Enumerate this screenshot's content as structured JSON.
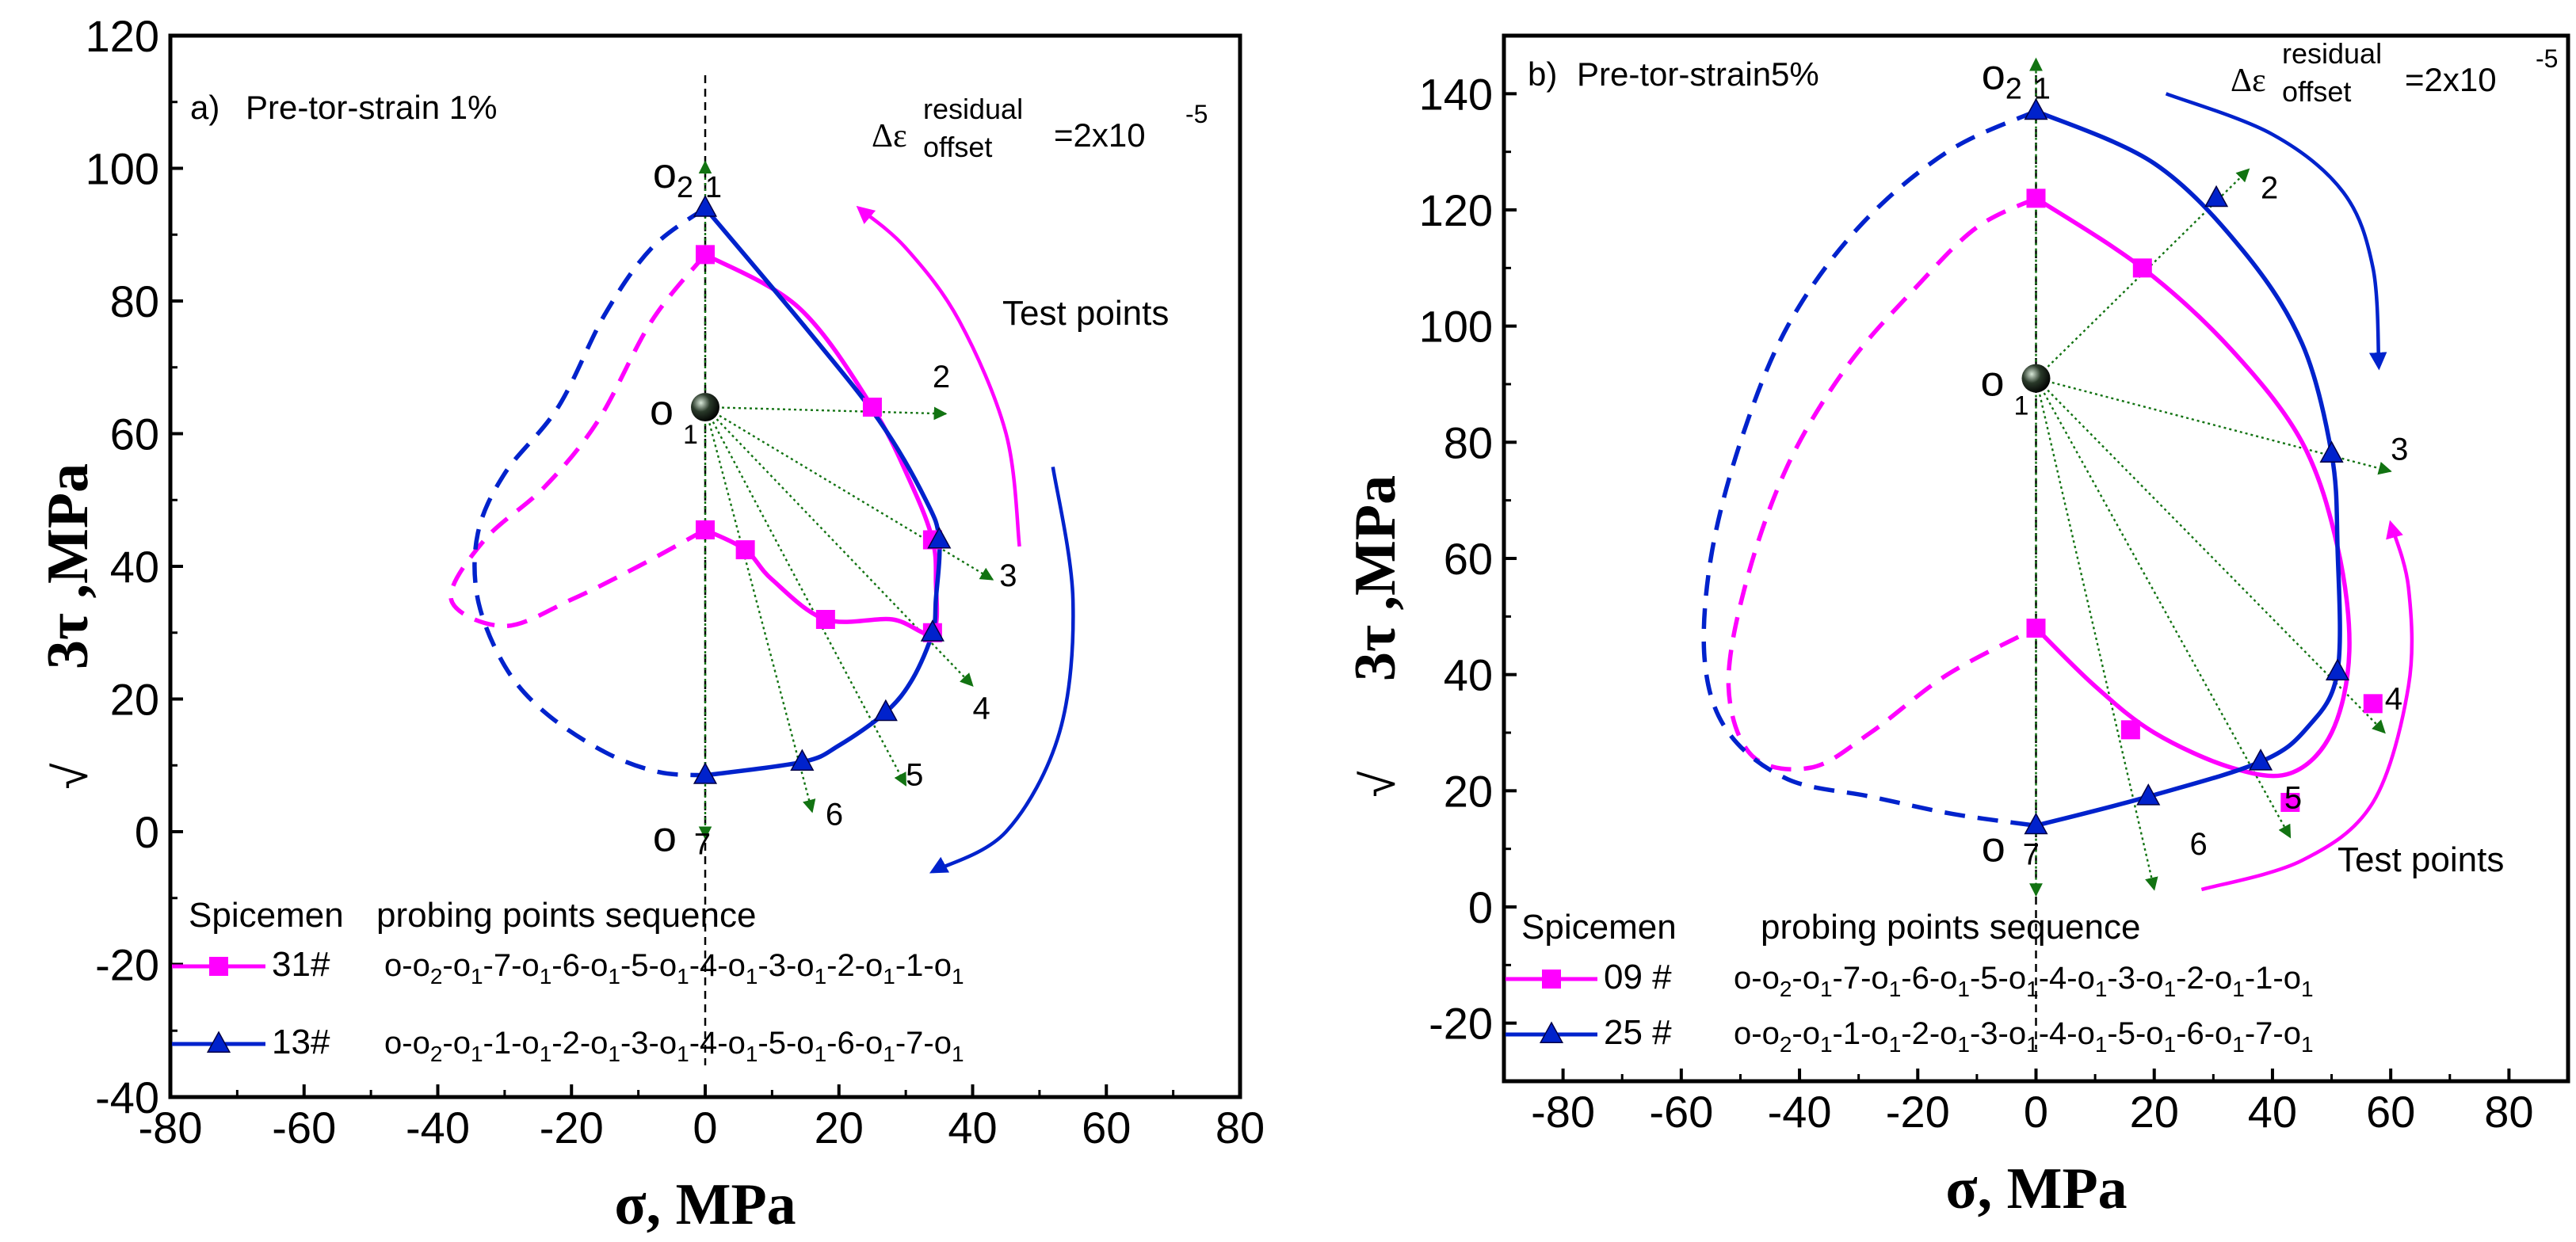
{
  "colors": {
    "pink": "#ff00ff",
    "blue": "#0022cc",
    "green": "#127312",
    "black": "#000000"
  },
  "chart_data": [
    {
      "type": "line",
      "panel_label": "a)",
      "title": "Pre-tor-strain 1%",
      "xlabel": "σ,  MPa",
      "ylabel_prefix": "√",
      "ylabel_main": "3τ ,MPa",
      "xlim": [
        -80,
        80
      ],
      "ylim": [
        -40,
        120
      ],
      "xticks": [
        "-80",
        "-60",
        "-40",
        "-20",
        "0",
        "20",
        "40",
        "60",
        "80"
      ],
      "yticks": [
        "-40",
        "-20",
        "0",
        "20",
        "40",
        "60",
        "80",
        "100",
        "120"
      ],
      "xtick_values": [
        -80,
        -60,
        -40,
        -20,
        0,
        20,
        40,
        60,
        80
      ],
      "ytick_values": [
        -40,
        -20,
        0,
        20,
        40,
        60,
        80,
        100,
        120
      ],
      "offset_label": {
        "delta": "Δε",
        "sup": "residual",
        "sub": "offset",
        "value": "=2x10",
        "exp": "-5"
      },
      "test_points_label": "Test points",
      "center_label": "o",
      "center_sub": "1",
      "center": [
        0,
        64
      ],
      "point_labels": [
        {
          "text": "o",
          "sub": "2",
          "num": "1",
          "x": -5,
          "y": 99
        },
        {
          "text": "2",
          "x": 34,
          "y": 67
        },
        {
          "text": "3",
          "x": 44,
          "y": 37
        },
        {
          "text": "4",
          "x": 40,
          "y": 17
        },
        {
          "text": "5",
          "x": 30,
          "y": 7
        },
        {
          "text": "6",
          "x": 18,
          "y": 1
        },
        {
          "text": "o",
          "num": "7",
          "x": -5,
          "y": -1
        }
      ],
      "probe_arrows": [
        [
          0,
          101
        ],
        [
          36,
          63
        ],
        [
          43,
          38
        ],
        [
          40,
          22
        ],
        [
          30,
          7
        ],
        [
          16,
          3
        ],
        [
          0,
          -1
        ]
      ],
      "series": [
        {
          "name": "31#",
          "sequence": [
            "o-o",
            "2",
            "-o",
            "1",
            "-7-o",
            "1",
            "-6-o",
            "1",
            "-5-o",
            "1",
            "-4-o",
            "1",
            "-3-o",
            "1",
            "-2-o",
            "1",
            "-1-o",
            "1"
          ],
          "color": "#ff00ff",
          "marker": "square",
          "points": [
            [
              0,
              87
            ],
            [
              25,
              64
            ],
            [
              34,
              44
            ],
            [
              34,
              30
            ],
            [
              18,
              32
            ],
            [
              6,
              42.5
            ],
            [
              0,
              45.5
            ]
          ],
          "curve_solid": [
            [
              0,
              87
            ],
            [
              14,
              79
            ],
            [
              25,
              64
            ],
            [
              31,
              52
            ],
            [
              34,
              44
            ],
            [
              34.5,
              38
            ],
            [
              34,
              30
            ],
            [
              28,
              32
            ],
            [
              18,
              32
            ],
            [
              10,
              38
            ],
            [
              6,
              42.5
            ],
            [
              0,
              45.5
            ]
          ],
          "curve_dashed": [
            [
              0,
              87
            ],
            [
              -8,
              77
            ],
            [
              -16,
              62
            ],
            [
              -24,
              52
            ],
            [
              -33,
              44
            ],
            [
              -38,
              35
            ],
            [
              -30,
              31
            ],
            [
              -20,
              35
            ],
            [
              -10,
              40
            ],
            [
              0,
              45.5
            ]
          ]
        },
        {
          "name": "13#",
          "sequence": [
            "o-o",
            "2",
            "-o",
            "1",
            "-1-o",
            "1",
            "-2-o",
            "1",
            "-3-o",
            "1",
            "-4-o",
            "1",
            "-5-o",
            "1",
            "-6-o",
            "1",
            "-7-o",
            "1"
          ],
          "color": "#0022cc",
          "marker": "triangle",
          "points": [
            [
              0,
              94
            ],
            [
              35,
              44
            ],
            [
              34,
              30
            ],
            [
              27,
              18
            ],
            [
              14.5,
              10.5
            ],
            [
              0,
              8.5
            ]
          ],
          "curve_solid": [
            [
              0,
              94
            ],
            [
              15,
              76
            ],
            [
              26,
              62
            ],
            [
              33,
              50
            ],
            [
              35,
              44
            ],
            [
              34.5,
              35
            ],
            [
              34,
              30
            ],
            [
              31,
              23
            ],
            [
              27,
              18
            ],
            [
              20,
              13
            ],
            [
              14.5,
              10.5
            ],
            [
              0,
              8.5
            ]
          ],
          "curve_dashed": [
            [
              0,
              94
            ],
            [
              -8,
              88
            ],
            [
              -15,
              78
            ],
            [
              -22,
              64
            ],
            [
              -30,
              54
            ],
            [
              -34,
              45
            ],
            [
              -34,
              35
            ],
            [
              -30,
              25
            ],
            [
              -24,
              18
            ],
            [
              -15,
              12
            ],
            [
              -7,
              9
            ],
            [
              0,
              8.5
            ]
          ]
        }
      ],
      "guide_arcs": [
        {
          "color": "#ff00ff",
          "arrow_at": "end",
          "points": [
            [
              47,
              43
            ],
            [
              45,
              60
            ],
            [
              38,
              77
            ],
            [
              30,
              88
            ],
            [
              23,
              94
            ]
          ]
        },
        {
          "color": "#0022cc",
          "arrow_at": "end",
          "points": [
            [
              52,
              55
            ],
            [
              55,
              35
            ],
            [
              53,
              15
            ],
            [
              45,
              0
            ],
            [
              34,
              -6
            ]
          ]
        }
      ],
      "legend": {
        "header_left": "Spicemen",
        "header_right": "probing points sequence"
      }
    },
    {
      "type": "line",
      "panel_label": "b)",
      "title": "Pre-tor-strain5%",
      "xlabel": "σ,  MPa",
      "ylabel_prefix": "√",
      "ylabel_main": "3τ ,MPa",
      "xlim": [
        -90,
        90
      ],
      "ylim": [
        -30,
        150
      ],
      "xticks": [
        "-80",
        "-60",
        "-40",
        "-20",
        "0",
        "20",
        "40",
        "60",
        "80"
      ],
      "yticks": [
        "-20",
        "0",
        "20",
        "40",
        "60",
        "80",
        "100",
        "120",
        "140"
      ],
      "xtick_values": [
        -80,
        -60,
        -40,
        -20,
        0,
        20,
        40,
        60,
        80
      ],
      "ytick_values": [
        -20,
        0,
        20,
        40,
        60,
        80,
        100,
        120,
        140
      ],
      "offset_label": {
        "delta": "Δε",
        "sup": "residual",
        "sub": "offset",
        "value": "=2x10",
        "exp": "-5"
      },
      "test_points_label": "Test points",
      "center_label": "o",
      "center_sub": "1",
      "center": [
        0,
        91
      ],
      "point_labels": [
        {
          "text": "o",
          "sub": "2",
          "num": "1",
          "x": -6,
          "y": 143
        },
        {
          "text": "2",
          "x": 38,
          "y": 122
        },
        {
          "text": "3",
          "x": 60,
          "y": 77
        },
        {
          "text": "4",
          "x": 59,
          "y": 34
        },
        {
          "text": "5",
          "x": 42,
          "y": 17
        },
        {
          "text": "6",
          "x": 26,
          "y": 9
        },
        {
          "text": "o",
          "num": "7",
          "x": -6,
          "y": 10
        }
      ],
      "probe_arrows": [
        [
          0,
          146
        ],
        [
          36,
          127
        ],
        [
          60,
          75
        ],
        [
          59,
          30
        ],
        [
          43,
          12
        ],
        [
          20,
          3
        ],
        [
          0,
          2
        ]
      ],
      "series": [
        {
          "name": "09 #",
          "sequence": [
            "o-o",
            "2",
            "-o",
            "1",
            "-7-o",
            "1",
            "-6-o",
            "1",
            "-5-o",
            "1",
            "-4-o",
            "1",
            "-3-o",
            "1",
            "-2-o",
            "1",
            "-1-o",
            "1"
          ],
          "color": "#ff00ff",
          "marker": "square",
          "points": [
            [
              0,
              122
            ],
            [
              18,
              110
            ],
            [
              57,
              35
            ],
            [
              43,
              18
            ],
            [
              16,
              30.5
            ],
            [
              0,
              48
            ]
          ],
          "curve_solid": [
            [
              0,
              122
            ],
            [
              18,
              110
            ],
            [
              33,
              96
            ],
            [
              45,
              80
            ],
            [
              51,
              62
            ],
            [
              53,
              44
            ],
            [
              50,
              30
            ],
            [
              43,
              23
            ],
            [
              33,
              24
            ],
            [
              20,
              30
            ],
            [
              10,
              38
            ],
            [
              0,
              48
            ]
          ],
          "curve_dashed": [
            [
              0,
              122
            ],
            [
              -10,
              117
            ],
            [
              -20,
              107
            ],
            [
              -32,
              93
            ],
            [
              -42,
              76
            ],
            [
              -49,
              56
            ],
            [
              -52,
              38
            ],
            [
              -48,
              26
            ],
            [
              -38,
              24
            ],
            [
              -28,
              30
            ],
            [
              -15,
              40
            ],
            [
              0,
              48
            ]
          ]
        },
        {
          "name": "25 #",
          "sequence": [
            "o-o",
            "2",
            "-o",
            "1",
            "-1-o",
            "1",
            "-2-o",
            "1",
            "-3-o",
            "1",
            "-4-o",
            "1",
            "-5-o",
            "1",
            "-6-o",
            "1",
            "-7-o",
            "1"
          ],
          "color": "#0022cc",
          "marker": "triangle",
          "points": [
            [
              0,
              137
            ],
            [
              30.5,
              122
            ],
            [
              50,
              78
            ],
            [
              51,
              40.5
            ],
            [
              38,
              25
            ],
            [
              19,
              19
            ],
            [
              0,
              14
            ]
          ],
          "curve_solid": [
            [
              0,
              137
            ],
            [
              20,
              128
            ],
            [
              35,
              113
            ],
            [
              45,
              97
            ],
            [
              50,
              78
            ],
            [
              51,
              62
            ],
            [
              51,
              40.5
            ],
            [
              46,
              31
            ],
            [
              38,
              25
            ],
            [
              19,
              19
            ],
            [
              0,
              14
            ]
          ],
          "curve_dashed": [
            [
              0,
              137
            ],
            [
              -15,
              130
            ],
            [
              -30,
              117
            ],
            [
              -42,
              100
            ],
            [
              -50,
              80
            ],
            [
              -55,
              60
            ],
            [
              -56,
              42
            ],
            [
              -52,
              30
            ],
            [
              -42,
              22
            ],
            [
              -28,
              19
            ],
            [
              -14,
              16
            ],
            [
              0,
              14
            ]
          ]
        }
      ],
      "guide_arcs": [
        {
          "color": "#0022cc",
          "arrow_at": "end",
          "points": [
            [
              22,
              140
            ],
            [
              40,
              133
            ],
            [
              52,
              123
            ],
            [
              57,
              110
            ],
            [
              58,
              93
            ]
          ]
        },
        {
          "color": "#ff00ff",
          "arrow_at": "end",
          "points": [
            [
              28,
              3
            ],
            [
              45,
              8
            ],
            [
              57,
              18
            ],
            [
              63,
              38
            ],
            [
              63,
              55
            ],
            [
              60,
              66
            ]
          ]
        }
      ],
      "legend": {
        "header_left": "Spicemen",
        "header_right": "probing points sequence"
      }
    }
  ]
}
